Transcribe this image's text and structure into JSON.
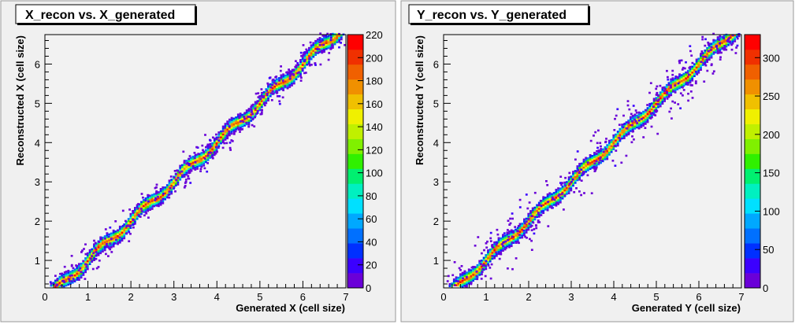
{
  "chart_data": [
    {
      "type": "heatmap",
      "title": "X_recon vs. X_generated",
      "xlabel": "Generated X (cell size)",
      "ylabel": "Reconstructed X (cell size)",
      "xlim": [
        0,
        7
      ],
      "ylim": [
        0.3,
        6.75
      ],
      "x_ticks": [
        "0",
        "1",
        "2",
        "3",
        "4",
        "5",
        "6",
        "7"
      ],
      "y_ticks": [
        "1",
        "2",
        "3",
        "4",
        "5",
        "6"
      ],
      "z_range": [
        0,
        220
      ],
      "z_ticks": [
        "0",
        "20",
        "40",
        "60",
        "80",
        "100",
        "120",
        "140",
        "160",
        "180",
        "200",
        "220"
      ],
      "grid": false,
      "trend": {
        "description": "dense diagonal band y = x with slight wiggle, sparse scattered outliers",
        "slope": 1,
        "intercept": 0
      }
    },
    {
      "type": "heatmap",
      "title": "Y_recon vs. Y_generated",
      "xlabel": "Generated Y (cell size)",
      "ylabel": "Reconstructed Y (cell size)",
      "xlim": [
        0,
        7
      ],
      "ylim": [
        0.3,
        6.75
      ],
      "x_ticks": [
        "0",
        "1",
        "2",
        "3",
        "4",
        "5",
        "6",
        "7"
      ],
      "y_ticks": [
        "1",
        "2",
        "3",
        "4",
        "5",
        "6"
      ],
      "z_range": [
        0,
        330
      ],
      "z_ticks": [
        "0",
        "50",
        "100",
        "150",
        "200",
        "250",
        "300"
      ],
      "grid": false,
      "trend": {
        "description": "dense diagonal band y = x with slight wiggle, sparse scattered outliers",
        "slope": 1,
        "intercept": 0
      }
    }
  ],
  "palette": [
    "#6a00d8",
    "#3b00ff",
    "#0030ff",
    "#0070ff",
    "#00a8ff",
    "#00e0ff",
    "#00f0c0",
    "#00f070",
    "#30f000",
    "#80f000",
    "#c0f000",
    "#f0f000",
    "#f0c000",
    "#f09000",
    "#f06000",
    "#f03000",
    "#ff0000"
  ]
}
